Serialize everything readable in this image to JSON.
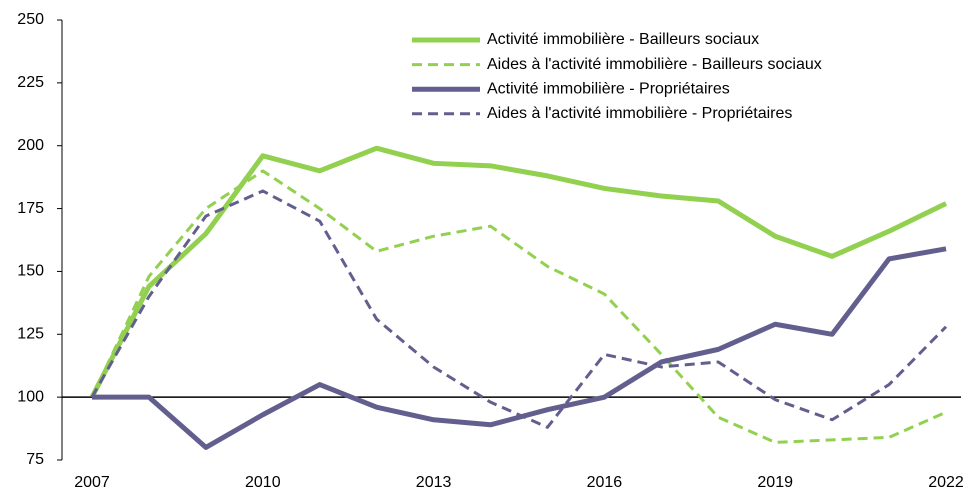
{
  "chart_data": {
    "type": "line",
    "x": [
      2007,
      2008,
      2009,
      2010,
      2011,
      2012,
      2013,
      2014,
      2015,
      2016,
      2017,
      2018,
      2019,
      2020,
      2021,
      2022
    ],
    "series": [
      {
        "name": "Activité immobilière - Bailleurs sociaux",
        "color": "#92d050",
        "dash": false,
        "values": [
          100,
          144,
          165,
          196,
          190,
          199,
          193,
          192,
          188,
          183,
          180,
          178,
          164,
          156,
          166,
          177
        ]
      },
      {
        "name": "Aides à l'activité immobilière - Bailleurs sociaux",
        "color": "#92d050",
        "dash": true,
        "values": [
          100,
          148,
          175,
          190,
          175,
          158,
          164,
          168,
          152,
          141,
          117,
          92,
          82,
          83,
          84,
          94
        ]
      },
      {
        "name": "Activité immobilière - Propriétaires",
        "color": "#625f8e",
        "dash": false,
        "values": [
          100,
          100,
          80,
          93,
          105,
          96,
          91,
          89,
          95,
          100,
          114,
          119,
          129,
          125,
          155,
          159
        ]
      },
      {
        "name": "Aides à l'activité immobilière - Propriétaires",
        "color": "#625f8e",
        "dash": true,
        "values": [
          100,
          140,
          172,
          182,
          170,
          131,
          112,
          98,
          88,
          117,
          112,
          114,
          99,
          91,
          105,
          128
        ]
      }
    ],
    "xlim": [
      2007,
      2022
    ],
    "xticks": [
      2007,
      2010,
      2013,
      2016,
      2019,
      2022
    ],
    "ylim": [
      75,
      250
    ],
    "yticks": [
      75,
      100,
      125,
      150,
      175,
      200,
      225,
      250
    ],
    "reference_line": 100,
    "grid": false,
    "legend": "top-right"
  }
}
